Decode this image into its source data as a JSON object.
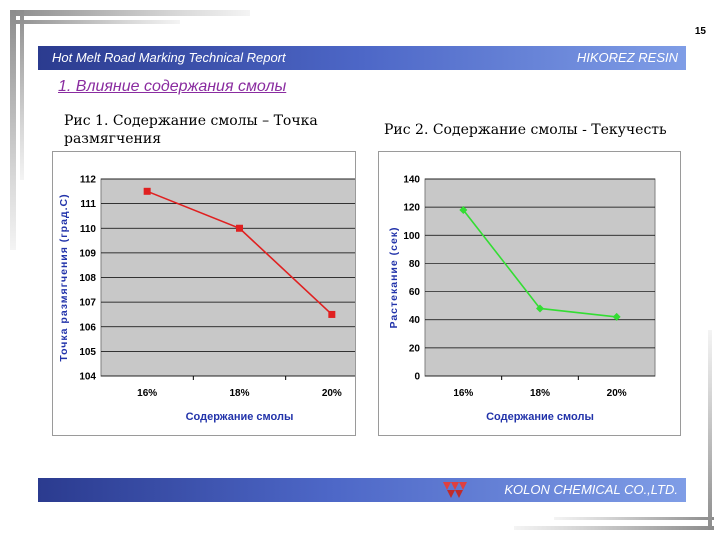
{
  "page_number": "15",
  "header": {
    "left_text": "Hot Melt Road Marking Technical Report",
    "right_text": "HIKOREZ RESIN",
    "color_start": "#2b3b8f",
    "color_end": "#7f9de6"
  },
  "section_title": "1. Влияние содержания смолы",
  "figures": {
    "fig1_title": "Рис 1. Содержание смолы – Точка размягчения",
    "fig2_title": "Рис 2. Содержание смолы - Текучесть"
  },
  "footer": {
    "company": "KOLON CHEMICAL CO.,LTD.",
    "logo_icon": "kolon-logo-icon"
  },
  "chart_data": [
    {
      "type": "line",
      "categories": [
        "16%",
        "18%",
        "20%"
      ],
      "series": [
        {
          "values": [
            111.5,
            110,
            106.5
          ],
          "color": "#e02020",
          "marker": "square"
        }
      ],
      "title": "",
      "xlabel": "Содержание смолы",
      "ylabel": "Точка размягчения (град.С)",
      "ylim": [
        104,
        112
      ],
      "yticks": [
        104,
        105,
        106,
        107,
        108,
        109,
        110,
        111,
        112
      ],
      "grid": true,
      "plot_background": "#c8c8c8"
    },
    {
      "type": "line",
      "categories": [
        "16%",
        "18%",
        "20%"
      ],
      "series": [
        {
          "values": [
            118,
            48,
            42
          ],
          "color": "#33dd33",
          "marker": "diamond"
        }
      ],
      "title": "",
      "xlabel": "Содержание смолы",
      "ylabel": "Растекание (сек)",
      "ylim": [
        0,
        140
      ],
      "yticks": [
        0,
        20,
        40,
        60,
        80,
        100,
        120,
        140
      ],
      "grid": true,
      "plot_background": "#c8c8c8"
    }
  ]
}
